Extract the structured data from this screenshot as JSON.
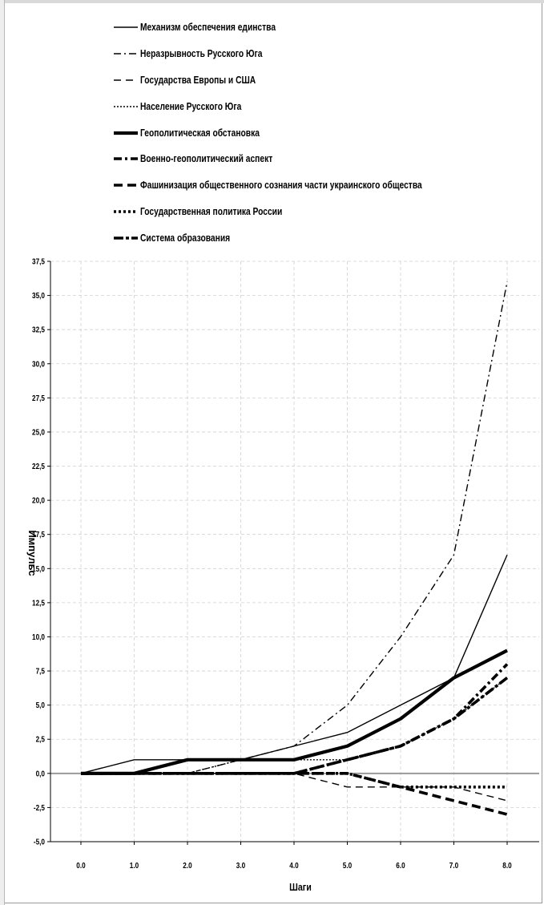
{
  "chart_data": {
    "type": "line",
    "xlabel": "Шаги",
    "ylabel": "Импульс",
    "x": [
      0.0,
      1.0,
      2.0,
      3.0,
      4.0,
      5.0,
      6.0,
      7.0,
      8.0
    ],
    "xticks": [
      "0.0",
      "1.0",
      "2.0",
      "3.0",
      "4.0",
      "5.0",
      "6.0",
      "7.0",
      "8.0"
    ],
    "ylim": [
      -5,
      37.5
    ],
    "yticks": [
      "-5,0",
      "-2,5",
      "0,0",
      "2,5",
      "5,0",
      "7,5",
      "10,0",
      "12,5",
      "15,0",
      "17,5",
      "20,0",
      "22,5",
      "25,0",
      "27,5",
      "30,0",
      "32,5",
      "35,0",
      "37,5"
    ],
    "grid": true,
    "legend_position": "top",
    "series": [
      {
        "name": "Механизм обеспечения единства",
        "style": "solid-thin",
        "values": [
          0,
          1,
          1,
          1,
          2,
          3,
          5,
          7,
          16
        ]
      },
      {
        "name": "Неразрывность Русского Юга",
        "style": "dashdot-thin",
        "values": [
          0,
          0,
          0,
          1,
          2,
          5,
          10,
          16,
          36
        ]
      },
      {
        "name": "Государства Европы и США",
        "style": "dashed-thin",
        "values": [
          0,
          0,
          0,
          0,
          0,
          -1,
          -1,
          -1,
          -2
        ]
      },
      {
        "name": "Население Русского Юга",
        "style": "dotted-thin",
        "values": [
          0,
          0,
          0,
          1,
          1,
          1,
          2,
          4,
          7
        ]
      },
      {
        "name": "Геополитическая обстановка",
        "style": "solid-thick",
        "values": [
          0,
          0,
          1,
          1,
          1,
          2,
          4,
          7,
          9
        ]
      },
      {
        "name": "Военно-геополитический аспект",
        "style": "dashdot-thick",
        "values": [
          0,
          0,
          0,
          0,
          0,
          1,
          2,
          4,
          8
        ]
      },
      {
        "name": "Фашинизация общественного сознания части украинского общества",
        "style": "dashed-thick",
        "values": [
          0,
          0,
          0,
          0,
          0,
          0,
          -1,
          -2,
          -3
        ]
      },
      {
        "name": "Государственная политика России",
        "style": "dotted-thick",
        "values": [
          0,
          0,
          0,
          0,
          0,
          0,
          -1,
          -1,
          -1
        ]
      },
      {
        "name": "Система образования",
        "style": "dashdot-thick2",
        "values": [
          0,
          0,
          0,
          0,
          0,
          1,
          2,
          4,
          7
        ]
      }
    ]
  }
}
